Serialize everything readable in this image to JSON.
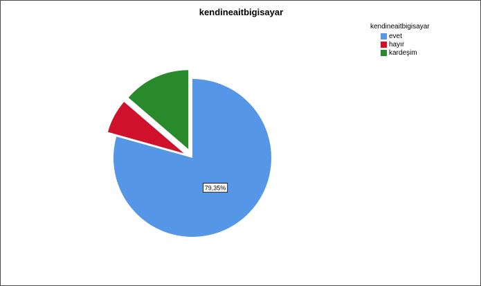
{
  "chart_data": {
    "type": "pie",
    "title": "kendineaitbigisayar",
    "legend_title": "kendineaitbigisayar",
    "legend_position": "top-right",
    "categories": [
      "evet",
      "hayır",
      "kardeşim"
    ],
    "values": [
      79.35,
      6.95,
      13.7
    ],
    "colors": [
      "#5596e6",
      "#d0112b",
      "#288a2a"
    ],
    "data_labels": [
      "79,35%",
      "",
      ""
    ],
    "exploded": [
      false,
      true,
      true
    ],
    "start_angle_deg": 0,
    "direction": "clockwise"
  }
}
